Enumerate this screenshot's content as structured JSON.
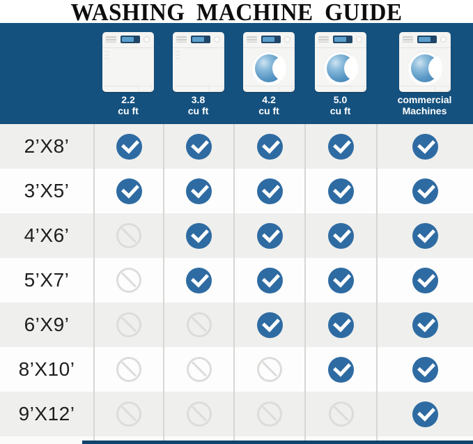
{
  "title": "WASHING MACHINE GUIDE",
  "header": {
    "machine_columns": [
      {
        "capacity": "2.2",
        "unit": "cu ft",
        "type": "top-loader"
      },
      {
        "capacity": "3.8",
        "unit": "cu ft",
        "type": "top-loader"
      },
      {
        "capacity": "4.2",
        "unit": "cu ft",
        "type": "front-loader"
      },
      {
        "capacity": "5.0",
        "unit": "cu ft",
        "type": "front-loader"
      },
      {
        "capacity": "commercial",
        "unit": "Machines",
        "type": "front-loader"
      }
    ]
  },
  "chart_data": {
    "type": "table",
    "title": "WASHING MACHINE GUIDE",
    "columns": [
      "2.2 cu ft",
      "3.8 cu ft",
      "4.2 cu ft",
      "5.0 cu ft",
      "commercial Machines"
    ],
    "rows": [
      "2’X8’",
      "3’X5’",
      "4’X6’",
      "5’X7’",
      "6’X9’",
      "8’X10’",
      "9’X12’"
    ],
    "values": [
      [
        1,
        1,
        1,
        1,
        1
      ],
      [
        1,
        1,
        1,
        1,
        1
      ],
      [
        0,
        1,
        1,
        1,
        1
      ],
      [
        0,
        1,
        1,
        1,
        1
      ],
      [
        0,
        0,
        1,
        1,
        1
      ],
      [
        0,
        0,
        0,
        1,
        1
      ],
      [
        0,
        0,
        0,
        0,
        1
      ]
    ],
    "cell_symbols": {
      "yes": "check-circle",
      "no": "prohibited-circle"
    }
  },
  "colors": {
    "band_navy": "#15517F",
    "check_blue": "#2E6BA2",
    "row_gray": "#EFEFED",
    "row_white": "#FDFDFD",
    "divider": "#D6D6D4",
    "prohibited_gray": "#DCDCDA",
    "title_black": "#0D0D0D",
    "bottom_bar": "#11436C"
  }
}
